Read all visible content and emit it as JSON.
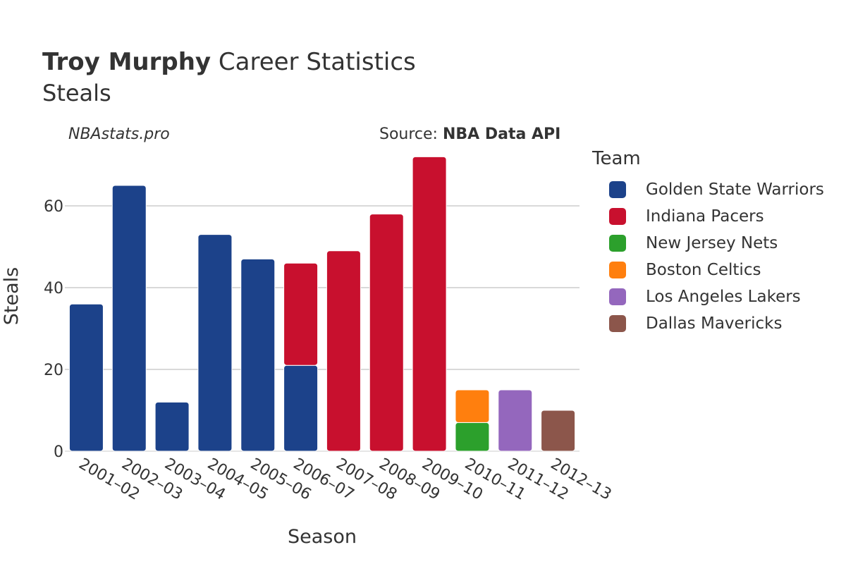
{
  "title_bold": "Troy Murphy",
  "title_rest": " Career Statistics",
  "subtitle": "Steals",
  "brand": "NBAstats.pro",
  "source_label": "Source: ",
  "source_name": "NBA Data API",
  "legend_title": "Team",
  "chart_data": {
    "type": "bar",
    "stacked": true,
    "title": "Troy Murphy Career Statistics",
    "subtitle": "Steals",
    "xlabel": "Season",
    "ylabel": "Steals",
    "ylim": [
      0,
      75
    ],
    "yticks": [
      0,
      20,
      40,
      60
    ],
    "grid": true,
    "legend_position": "right",
    "categories": [
      "2001–02",
      "2002–03",
      "2003–04",
      "2004–05",
      "2005–06",
      "2006–07",
      "2007–08",
      "2008–09",
      "2009–10",
      "2010–11",
      "2011–12",
      "2012–13"
    ],
    "series": [
      {
        "name": "Golden State Warriors",
        "color": "#1c428a",
        "values": [
          36,
          65,
          12,
          53,
          47,
          21,
          0,
          0,
          0,
          0,
          0,
          0
        ]
      },
      {
        "name": "Indiana Pacers",
        "color": "#c8102e",
        "values": [
          0,
          0,
          0,
          0,
          0,
          25,
          49,
          58,
          72,
          0,
          0,
          0
        ]
      },
      {
        "name": "New Jersey Nets",
        "color": "#2ca02c",
        "values": [
          0,
          0,
          0,
          0,
          0,
          0,
          0,
          0,
          0,
          7,
          0,
          0
        ]
      },
      {
        "name": "Boston Celtics",
        "color": "#ff7f0e",
        "values": [
          0,
          0,
          0,
          0,
          0,
          0,
          0,
          0,
          0,
          8,
          0,
          0
        ]
      },
      {
        "name": "Los Angeles Lakers",
        "color": "#9467bd",
        "values": [
          0,
          0,
          0,
          0,
          0,
          0,
          0,
          0,
          0,
          0,
          15,
          0
        ]
      },
      {
        "name": "Dallas Mavericks",
        "color": "#8c564b",
        "values": [
          0,
          0,
          0,
          0,
          0,
          0,
          0,
          0,
          0,
          0,
          0,
          10
        ]
      }
    ]
  }
}
